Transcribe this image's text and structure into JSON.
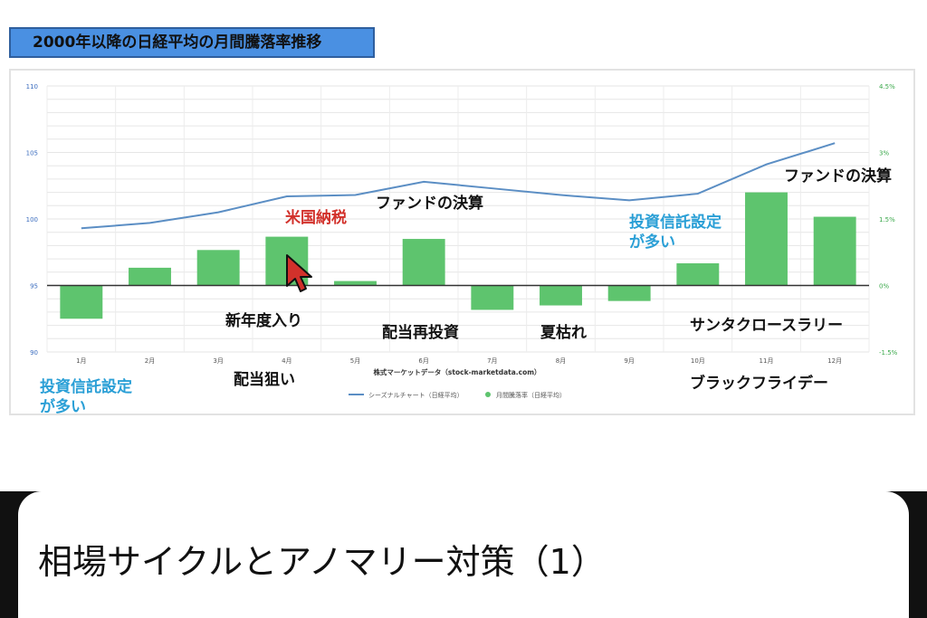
{
  "header": {
    "title": "2000年以降の日経平均の月間騰落率推移"
  },
  "chart_data": {
    "type": "bar+line",
    "categories": [
      "1月",
      "2月",
      "3月",
      "4月",
      "5月",
      "6月",
      "7月",
      "8月",
      "9月",
      "10月",
      "11月",
      "12月"
    ],
    "series": [
      {
        "name": "シーズナルチャート（日経平均）",
        "type": "line",
        "axis": "left",
        "values": [
          99.3,
          99.7,
          100.5,
          101.7,
          101.8,
          102.8,
          102.3,
          101.8,
          101.4,
          101.9,
          104.1,
          105.7
        ]
      },
      {
        "name": "月間騰落率（日経平均）",
        "type": "bar",
        "axis": "right",
        "values": [
          -0.75,
          0.4,
          0.8,
          1.1,
          0.1,
          1.05,
          -0.55,
          -0.45,
          -0.35,
          0.5,
          2.1,
          1.55
        ]
      }
    ],
    "left_axis": {
      "ticks": [
        "90",
        "95",
        "100",
        "105",
        "110"
      ],
      "range": [
        90,
        110
      ]
    },
    "right_axis": {
      "ticks": [
        "-1.5%",
        "0%",
        "1.5%",
        "3%",
        "4.5%"
      ],
      "range": [
        -1.5,
        4.5
      ]
    },
    "source_label": "株式マーケットデータ（stock-marketdata.com）",
    "grid": true,
    "legend_position": "bottom",
    "colors": {
      "bar": "#5ec46e",
      "line": "#5b8ec4",
      "left_tick": "#3d6ebf",
      "right_tick": "#3aa84a"
    },
    "annotations": {
      "fund_settlement_june": "ファンドの決算",
      "fund_settlement_dec": "ファンドの決算",
      "us_tax": "米国納税",
      "investment_trust_nov": [
        "投資信託設定",
        "が多い"
      ],
      "investment_trust_jan": [
        "投資信託設定",
        "が多い"
      ],
      "new_fiscal_year": "新年度入り",
      "dividend_reinvest": "配当再投資",
      "summer_lull": "夏枯れ",
      "santa_rally": "サンタクロースラリー",
      "dividend_target": "配当狙い",
      "black_friday": "ブラックフライデー"
    }
  },
  "bottom": {
    "title": "相場サイクルとアノマリー対策（1）"
  }
}
